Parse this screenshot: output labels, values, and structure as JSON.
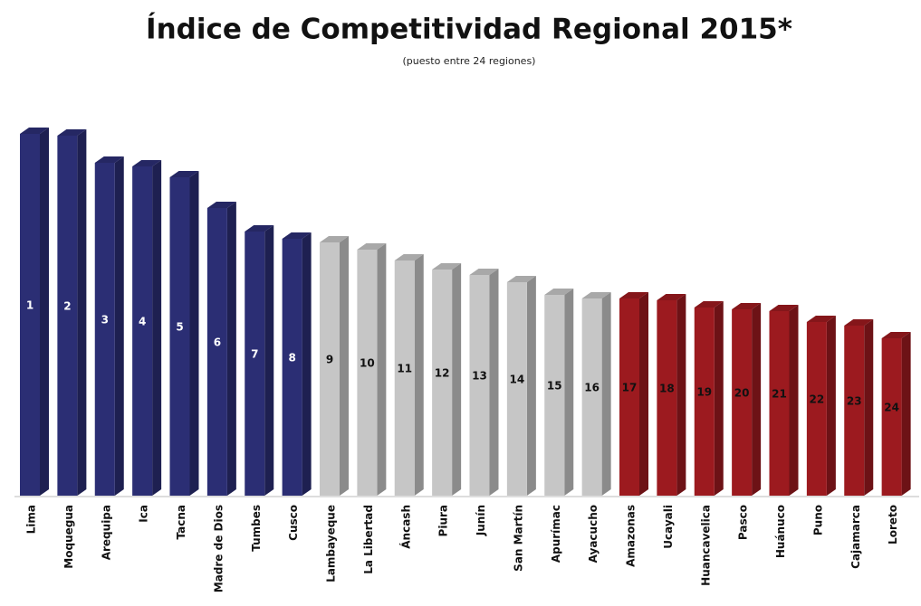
{
  "chart_data": {
    "type": "bar3d",
    "title": "Índice de Competitividad Regional 2015*",
    "subtitle": "(puesto entre 24 regiones)",
    "categories": [
      "Lima",
      "Moquegua",
      "Arequipa",
      "Ica",
      "Tacna",
      "Madre de Dios",
      "Tumbes",
      "Cusco",
      "Lambayeque",
      "La Libertad",
      "Áncash",
      "Piura",
      "Junín",
      "San Martín",
      "Apurímac",
      "Ayacucho",
      "Amazonas",
      "Ucayali",
      "Huancavelica",
      "Pasco",
      "Huánuco",
      "Puno",
      "Cajamarca",
      "Loreto"
    ],
    "values": [
      100,
      99.5,
      92,
      91,
      88,
      79.5,
      73,
      71,
      70,
      68,
      65,
      62.5,
      61,
      59,
      55.5,
      54.5,
      54.5,
      54,
      52,
      51.5,
      51,
      48,
      47,
      43.5
    ],
    "ranks": [
      1,
      2,
      3,
      4,
      5,
      6,
      7,
      8,
      9,
      10,
      11,
      12,
      13,
      14,
      15,
      16,
      17,
      18,
      19,
      20,
      21,
      22,
      23,
      24
    ],
    "colors": [
      "#2b2e74",
      "#2b2e74",
      "#2b2e74",
      "#2b2e74",
      "#2b2e74",
      "#2b2e74",
      "#2b2e74",
      "#2b2e74",
      "#c6c6c6",
      "#c6c6c6",
      "#c6c6c6",
      "#c6c6c6",
      "#c6c6c6",
      "#c6c6c6",
      "#c6c6c6",
      "#c6c6c6",
      "#9c1a1f",
      "#9c1a1f",
      "#9c1a1f",
      "#9c1a1f",
      "#9c1a1f",
      "#9c1a1f",
      "#9c1a1f",
      "#9c1a1f"
    ],
    "ylim": [
      0,
      100
    ]
  }
}
